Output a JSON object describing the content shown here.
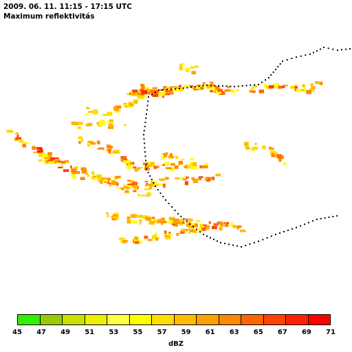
{
  "header": {
    "title": "2009. 06. 11. 11:15 - 17:15 UTC",
    "subtitle": "Maximum reflektivitás"
  },
  "legend": {
    "unit": "dBZ",
    "ticks": [
      "45",
      "47",
      "49",
      "51",
      "53",
      "55",
      "57",
      "59",
      "61",
      "63",
      "65",
      "67",
      "69",
      "71"
    ],
    "colors": [
      "#33ee00",
      "#99cc00",
      "#ccdd00",
      "#eeee00",
      "#ffff44",
      "#ffff00",
      "#ffdd00",
      "#ffbb00",
      "#ffa000",
      "#ff8800",
      "#ff6600",
      "#ff4400",
      "#ff2200",
      "#ff0000"
    ]
  }
}
